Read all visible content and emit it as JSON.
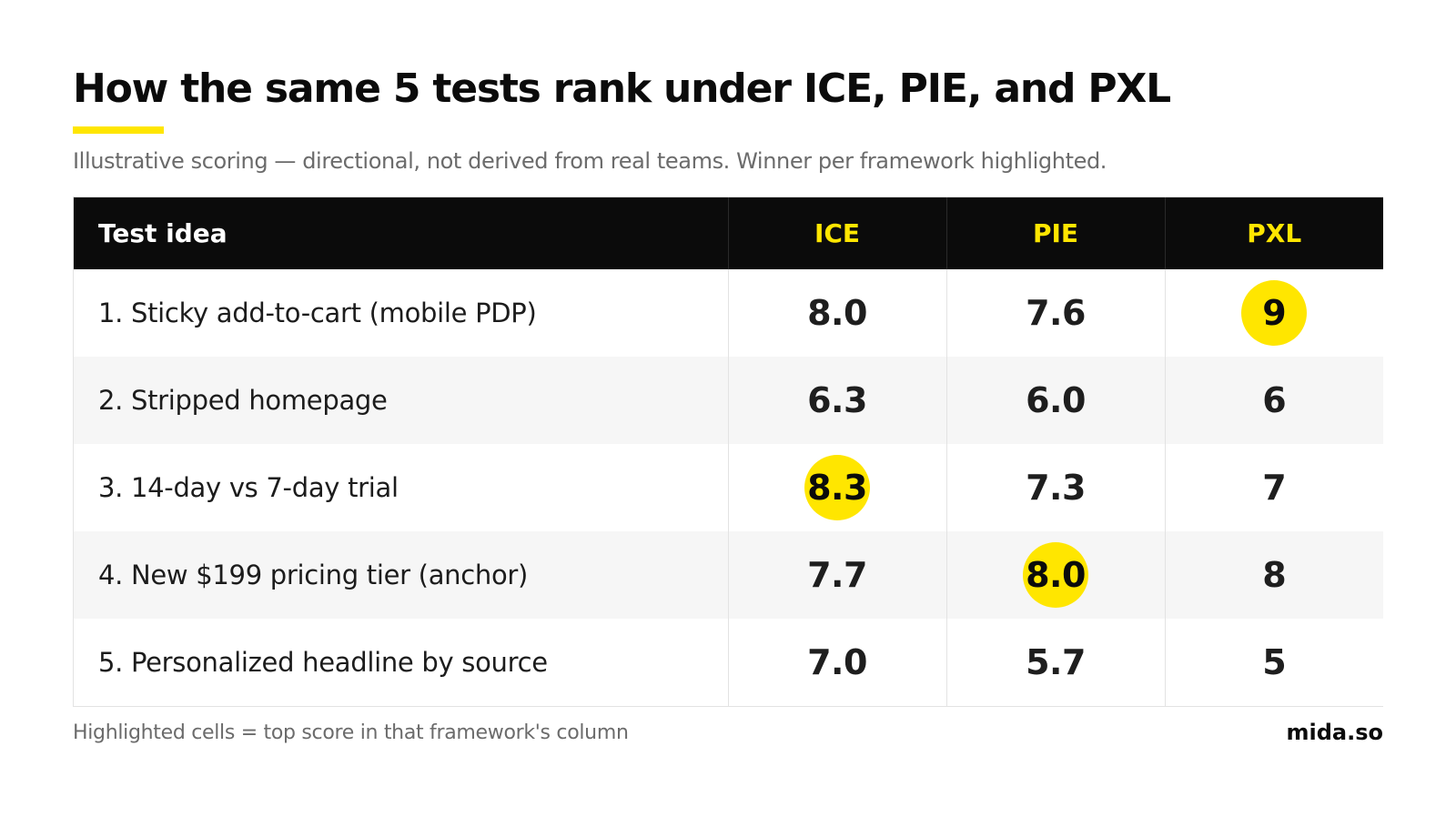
{
  "title": "How the same 5 tests rank under ICE, PIE, and PXL",
  "subtitle": "Illustrative scoring — directional, not derived from real teams. Winner per framework highlighted.",
  "footnote": "Highlighted cells = top score in that framework's column",
  "brand": "mida.so",
  "colors": {
    "accent": "#FFE600",
    "header_bg": "#0b0b0b",
    "stripe": "#f6f6f6"
  },
  "chart_data": {
    "type": "table",
    "columns": [
      "Test idea",
      "ICE",
      "PIE",
      "PXL"
    ],
    "rows": [
      {
        "label": "1. Sticky add-to-cart (mobile PDP)",
        "scores": [
          "8.0",
          "7.6",
          "9"
        ],
        "highlight": [
          false,
          false,
          true
        ]
      },
      {
        "label": "2. Stripped homepage",
        "scores": [
          "6.3",
          "6.0",
          "6"
        ],
        "highlight": [
          false,
          false,
          false
        ]
      },
      {
        "label": "3. 14-day vs 7-day trial",
        "scores": [
          "8.3",
          "7.3",
          "7"
        ],
        "highlight": [
          true,
          false,
          false
        ]
      },
      {
        "label": "4. New $199 pricing tier (anchor)",
        "scores": [
          "7.7",
          "8.0",
          "8"
        ],
        "highlight": [
          false,
          true,
          false
        ]
      },
      {
        "label": "5. Personalized headline by source",
        "scores": [
          "7.0",
          "5.7",
          "5"
        ],
        "highlight": [
          false,
          false,
          false
        ]
      }
    ]
  }
}
